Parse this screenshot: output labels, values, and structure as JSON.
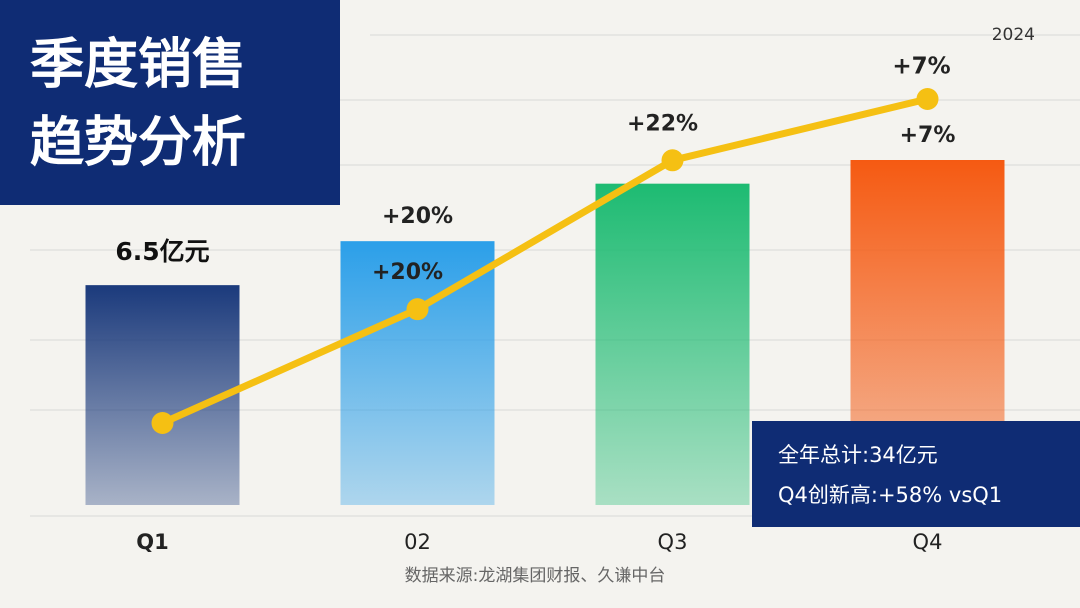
{
  "chart_data": {
    "type": "bar",
    "title": [
      "季度销售",
      "趋势分析"
    ],
    "year": "2024",
    "categories": [
      "Q1",
      "02",
      "Q3",
      "Q4"
    ],
    "values": [
      6.5,
      7.8,
      9.5,
      10.2
    ],
    "value_labels": [
      "6.5亿元",
      null,
      null,
      null
    ],
    "colors": [
      "#1b3a7c",
      "#2b9fe9",
      "#1dbb72",
      "#f55a12"
    ],
    "growth": {
      "values": [
        null,
        20,
        22,
        7
      ],
      "value_labels": [
        null,
        "+20%",
        "+22%",
        "+7%"
      ],
      "color": "#f5c013"
    },
    "annotations": [
      "全年总计:34亿元",
      "Q4创新高:+58% vsQ1"
    ],
    "source": "数据来源:龙湖集团财报、久谦中台"
  }
}
